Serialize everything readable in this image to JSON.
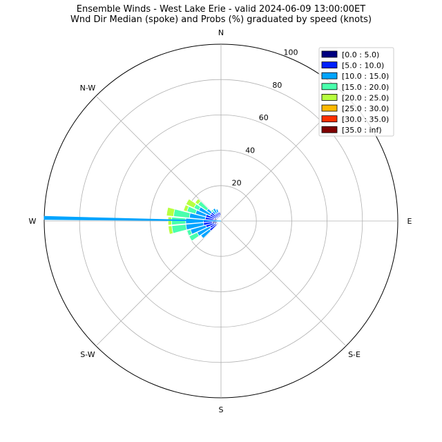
{
  "chart_data": {
    "type": "windrose",
    "title": "Ensemble Winds - West Lake Erie - valid 2024-06-09 13:00:00ET",
    "subtitle": "Wnd Dir Median (spoke) and Probs (%) graduated by speed (knots)",
    "radial_ticks": [
      "20",
      "40",
      "60",
      "80",
      "100"
    ],
    "radial_max": 100,
    "direction_labels": [
      {
        "label": "N",
        "angle": 0
      },
      {
        "label": "N-W",
        "angle": 315
      },
      {
        "label": "W",
        "angle": 270
      },
      {
        "label": "S-W",
        "angle": 225
      },
      {
        "label": "S",
        "angle": 180
      },
      {
        "label": "S-E",
        "angle": 135
      },
      {
        "label": "E",
        "angle": 90
      }
    ],
    "legend": [
      {
        "label": "[0.0 : 5.0)",
        "color": "#000080"
      },
      {
        "label": "[5.0 : 10.0)",
        "color": "#0020ff"
      },
      {
        "label": "[10.0 : 15.0)",
        "color": "#00a4ff"
      },
      {
        "label": "[15.0 : 20.0)",
        "color": "#49ffad"
      },
      {
        "label": "[20.0 : 25.0)",
        "color": "#b7ff40"
      },
      {
        "label": "[25.0 : 30.0)",
        "color": "#ffb900"
      },
      {
        "label": "[30.0 : 35.0)",
        "color": "#ff3000"
      },
      {
        "label": "[35.0 : inf)",
        "color": "#800000"
      }
    ],
    "legend_position": "top-right",
    "grid": true,
    "sector_width_deg": 10,
    "spoke": {
      "direction_deg": 271,
      "value": 100,
      "color": "#00a4ff"
    },
    "sectors": [
      {
        "direction": 230,
        "cumulative": [
          3,
          8,
          14
        ]
      },
      {
        "direction": 240,
        "cumulative": [
          3,
          7,
          15,
          20
        ]
      },
      {
        "direction": 250,
        "cumulative": [
          4,
          9,
          18,
          20
        ]
      },
      {
        "direction": 260,
        "cumulative": [
          5,
          10,
          20,
          28,
          30
        ]
      },
      {
        "direction": 270,
        "cumulative": [
          5,
          10,
          20,
          28,
          30
        ]
      },
      {
        "direction": 280,
        "cumulative": [
          4,
          9,
          18,
          27,
          31
        ]
      },
      {
        "direction": 290,
        "cumulative": [
          4,
          9,
          15,
          20,
          22
        ]
      },
      {
        "direction": 300,
        "cumulative": [
          3,
          7,
          14,
          17,
          22
        ]
      },
      {
        "direction": 310,
        "cumulative": [
          3,
          7,
          10,
          16,
          18
        ]
      },
      {
        "direction": 320,
        "cumulative": [
          2,
          5,
          7,
          8
        ]
      },
      {
        "direction": 330,
        "cumulative": [
          2,
          5,
          8
        ]
      },
      {
        "direction": 340,
        "cumulative": [
          2,
          5,
          7
        ]
      },
      {
        "direction": 350,
        "cumulative": [
          3,
          5
        ]
      }
    ]
  }
}
